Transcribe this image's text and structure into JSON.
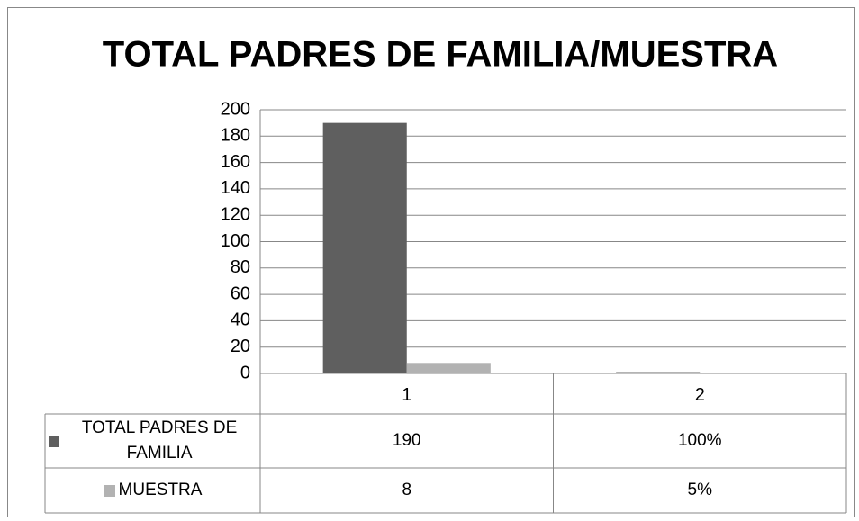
{
  "chart_data": {
    "type": "bar",
    "title": "TOTAL PADRES DE FAMILIA/MUESTRA",
    "categories": [
      "1",
      "2"
    ],
    "series": [
      {
        "name": "TOTAL PADRES DE FAMILIA",
        "color": "#5f5f5f",
        "values": [
          190,
          1
        ],
        "value_labels": [
          "190",
          "100%"
        ]
      },
      {
        "name": "MUESTRA",
        "color": "#b2b2b2",
        "values": [
          8,
          0.05
        ],
        "value_labels": [
          "8",
          "5%"
        ]
      }
    ],
    "ylim": [
      0,
      200
    ],
    "yticks": [
      0,
      20,
      40,
      60,
      80,
      100,
      120,
      140,
      160,
      180,
      200
    ],
    "grid": true,
    "legend": "data-table"
  }
}
